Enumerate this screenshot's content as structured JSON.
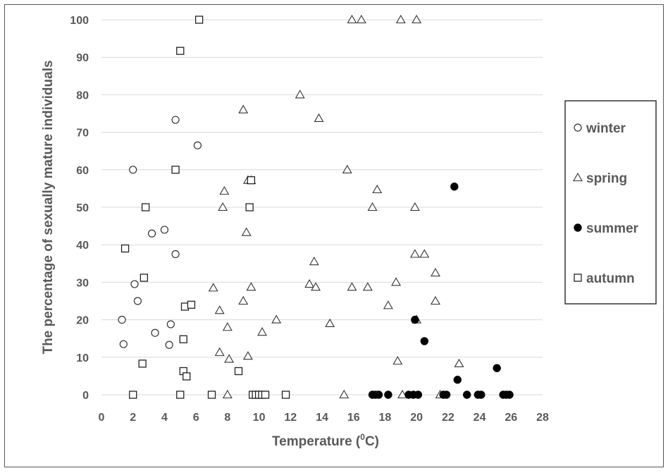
{
  "chart_data": {
    "type": "scatter",
    "title": "",
    "xlabel": "Temperature (",
    "xlabel_sup": "0",
    "xlabel_end": "C)",
    "ylabel": "The percentage of sexually mature individuals",
    "xlim": [
      0,
      28
    ],
    "ylim": [
      0,
      100
    ],
    "x_ticks": [
      0,
      2,
      4,
      6,
      8,
      10,
      12,
      14,
      16,
      18,
      20,
      22,
      24,
      26,
      28
    ],
    "y_ticks": [
      0,
      10,
      20,
      30,
      40,
      50,
      60,
      70,
      80,
      90,
      100
    ],
    "grid": "horizontal",
    "legend_position": "right",
    "series": [
      {
        "name": "winter",
        "marker": "circle-open",
        "points": [
          [
            1.3,
            20
          ],
          [
            1.4,
            13.5
          ],
          [
            2.0,
            60
          ],
          [
            2.1,
            29.5
          ],
          [
            2.3,
            25
          ],
          [
            3.2,
            43
          ],
          [
            3.4,
            16.5
          ],
          [
            4.0,
            44
          ],
          [
            4.3,
            13.3
          ],
          [
            4.4,
            18.8
          ],
          [
            4.7,
            73.3
          ],
          [
            4.7,
            37.5
          ],
          [
            6.1,
            66.5
          ]
        ]
      },
      {
        "name": "spring",
        "marker": "triangle-open",
        "points": [
          [
            7.1,
            28.5
          ],
          [
            7.5,
            22.5
          ],
          [
            7.5,
            11.3
          ],
          [
            7.7,
            50
          ],
          [
            7.8,
            54.3
          ],
          [
            8.0,
            18
          ],
          [
            8.0,
            0
          ],
          [
            8.1,
            9.5
          ],
          [
            9.0,
            76
          ],
          [
            9.0,
            25
          ],
          [
            9.2,
            43.3
          ],
          [
            9.3,
            57.2
          ],
          [
            9.3,
            10.3
          ],
          [
            9.5,
            57.2
          ],
          [
            9.5,
            28.7
          ],
          [
            10.2,
            16.7
          ],
          [
            11.1,
            20
          ],
          [
            12.6,
            80
          ],
          [
            13.2,
            29.5
          ],
          [
            13.5,
            35.5
          ],
          [
            13.6,
            28.7
          ],
          [
            13.8,
            73.7
          ],
          [
            14.5,
            19
          ],
          [
            15.4,
            0
          ],
          [
            15.6,
            60
          ],
          [
            15.9,
            100
          ],
          [
            15.9,
            28.7
          ],
          [
            16.5,
            100
          ],
          [
            16.9,
            28.7
          ],
          [
            17.2,
            50
          ],
          [
            17.5,
            54.7
          ],
          [
            18.2,
            23.8
          ],
          [
            18.7,
            30
          ],
          [
            18.8,
            9
          ],
          [
            19.0,
            100
          ],
          [
            19.1,
            0
          ],
          [
            19.9,
            37.5
          ],
          [
            19.9,
            50
          ],
          [
            20.0,
            100
          ],
          [
            20.0,
            20
          ],
          [
            20.5,
            37.5
          ],
          [
            21.2,
            32.5
          ],
          [
            21.2,
            25
          ],
          [
            21.5,
            0
          ],
          [
            22.7,
            8.3
          ]
        ]
      },
      {
        "name": "summer",
        "marker": "circle-filled",
        "points": [
          [
            17.2,
            0
          ],
          [
            17.4,
            0
          ],
          [
            17.6,
            0
          ],
          [
            18.2,
            0
          ],
          [
            19.5,
            0
          ],
          [
            19.8,
            0
          ],
          [
            20.1,
            0
          ],
          [
            19.9,
            20
          ],
          [
            20.5,
            14.3
          ],
          [
            21.7,
            0
          ],
          [
            21.9,
            0
          ],
          [
            22.4,
            55.5
          ],
          [
            22.6,
            4
          ],
          [
            23.2,
            0
          ],
          [
            23.9,
            0
          ],
          [
            24.1,
            0
          ],
          [
            25.1,
            7.1
          ],
          [
            25.5,
            0
          ],
          [
            25.7,
            0
          ],
          [
            25.9,
            0
          ]
        ]
      },
      {
        "name": "autumn",
        "marker": "square-open",
        "points": [
          [
            1.5,
            39
          ],
          [
            2.0,
            0
          ],
          [
            2.6,
            8.3
          ],
          [
            2.7,
            31.2
          ],
          [
            2.8,
            50
          ],
          [
            4.7,
            60
          ],
          [
            5.0,
            91.7
          ],
          [
            5.0,
            0
          ],
          [
            5.2,
            14.8
          ],
          [
            5.2,
            6.3
          ],
          [
            5.3,
            23.5
          ],
          [
            5.4,
            4.9
          ],
          [
            5.7,
            24
          ],
          [
            6.2,
            100
          ],
          [
            7.0,
            0
          ],
          [
            8.7,
            6.3
          ],
          [
            9.4,
            50
          ],
          [
            9.5,
            57.2
          ],
          [
            9.6,
            0
          ],
          [
            9.8,
            0
          ],
          [
            10.0,
            0
          ],
          [
            10.2,
            0
          ],
          [
            10.4,
            0
          ],
          [
            11.7,
            0
          ]
        ]
      }
    ]
  }
}
